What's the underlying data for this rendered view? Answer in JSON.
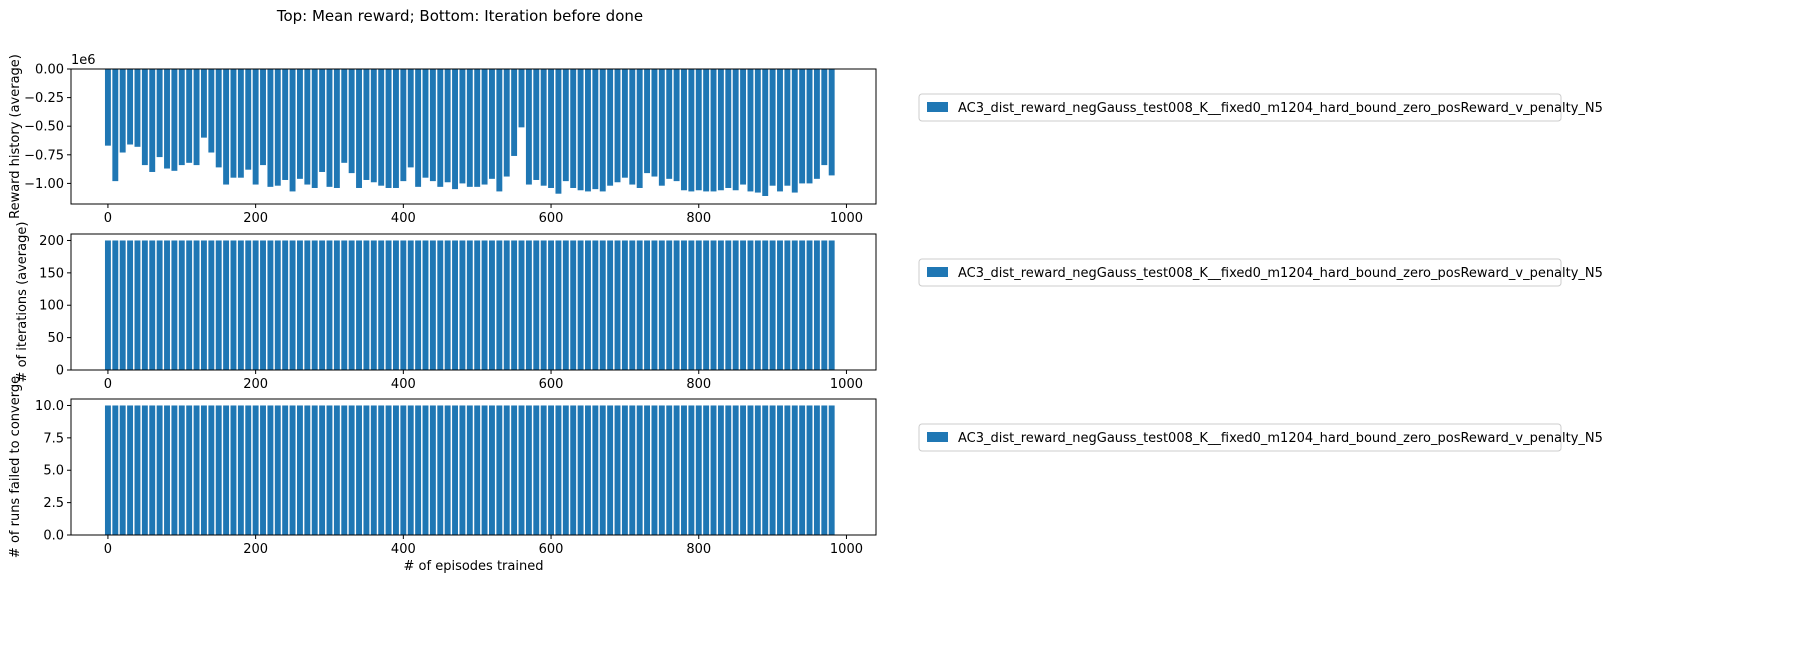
{
  "figure": {
    "suptitle": "Top: Mean reward; Bottom: Iteration before done",
    "bar_color": "#1f77b4"
  },
  "chart_data": [
    {
      "type": "bar",
      "title": "",
      "xlabel": "",
      "ylabel": "Reward history (average)",
      "offset_label": "1e6",
      "xlim": [
        -50,
        1040
      ],
      "ylim": [
        -1.18,
        0.0
      ],
      "xticks": [
        0,
        200,
        400,
        600,
        800,
        1000
      ],
      "xtick_labels": [
        "0",
        "200",
        "400",
        "600",
        "800",
        "1000"
      ],
      "yticks": [
        0.0,
        -0.25,
        -0.5,
        -0.75,
        -1.0
      ],
      "ytick_labels": [
        "0.00",
        "−0.25",
        "−0.50",
        "−0.75",
        "−1.00"
      ],
      "y_scale_note": "values in units of 1e6",
      "series": [
        {
          "name": "AC3_dist_reward_negGauss_test008_K__fixed0_m1204_hard_bound_zero_posReward_v_penalty_N5",
          "x": [
            0,
            10,
            20,
            30,
            40,
            50,
            60,
            70,
            80,
            90,
            100,
            110,
            120,
            130,
            140,
            150,
            160,
            170,
            180,
            190,
            200,
            210,
            220,
            230,
            240,
            250,
            260,
            270,
            280,
            290,
            300,
            310,
            320,
            330,
            340,
            350,
            360,
            370,
            380,
            390,
            400,
            410,
            420,
            430,
            440,
            450,
            460,
            470,
            480,
            490,
            500,
            510,
            520,
            530,
            540,
            550,
            560,
            570,
            580,
            590,
            600,
            610,
            620,
            630,
            640,
            650,
            660,
            670,
            680,
            690,
            700,
            710,
            720,
            730,
            740,
            750,
            760,
            770,
            780,
            790,
            800,
            810,
            820,
            830,
            840,
            850,
            860,
            870,
            880,
            890,
            900,
            910,
            920,
            930,
            940,
            950,
            960,
            970,
            980
          ],
          "values": [
            -0.67,
            -0.98,
            -0.73,
            -0.66,
            -0.68,
            -0.84,
            -0.9,
            -0.77,
            -0.87,
            -0.89,
            -0.84,
            -0.82,
            -0.84,
            -0.6,
            -0.73,
            -0.86,
            -1.01,
            -0.95,
            -0.95,
            -0.88,
            -1.01,
            -0.84,
            -1.03,
            -1.02,
            -0.97,
            -1.07,
            -0.96,
            -1.01,
            -1.04,
            -0.9,
            -1.03,
            -1.04,
            -0.82,
            -0.91,
            -1.04,
            -0.97,
            -0.99,
            -1.02,
            -1.04,
            -1.04,
            -0.98,
            -0.86,
            -1.03,
            -0.95,
            -0.98,
            -1.03,
            -0.99,
            -1.05,
            -1.0,
            -1.03,
            -1.03,
            -1.01,
            -0.96,
            -1.07,
            -0.94,
            -0.76,
            -0.51,
            -1.01,
            -0.97,
            -1.02,
            -1.04,
            -1.09,
            -0.98,
            -1.04,
            -1.06,
            -1.07,
            -1.05,
            -1.07,
            -1.02,
            -0.99,
            -0.95,
            -1.01,
            -1.04,
            -0.91,
            -0.94,
            -1.02,
            -0.96,
            -0.98,
            -1.06,
            -1.07,
            -1.06,
            -1.07,
            -1.07,
            -1.06,
            -1.04,
            -1.06,
            -1.01,
            -1.07,
            -1.08,
            -1.11,
            -1.02,
            -1.07,
            -1.02,
            -1.08,
            -1.0,
            -1.0,
            -0.96,
            -0.84,
            -0.93
          ]
        }
      ],
      "legend": "upper-left outside right"
    },
    {
      "type": "bar",
      "title": "",
      "xlabel": "",
      "ylabel": "# of iterations (average)",
      "xlim": [
        -50,
        1040
      ],
      "ylim": [
        0,
        210
      ],
      "xticks": [
        0,
        200,
        400,
        600,
        800,
        1000
      ],
      "xtick_labels": [
        "0",
        "200",
        "400",
        "600",
        "800",
        "1000"
      ],
      "yticks": [
        0,
        50,
        100,
        150,
        200
      ],
      "ytick_labels": [
        "0",
        "50",
        "100",
        "150",
        "200"
      ],
      "series": [
        {
          "name": "AC3_dist_reward_negGauss_test008_K__fixed0_m1204_hard_bound_zero_posReward_v_penalty_N5",
          "x_start": 0,
          "x_step": 10,
          "count": 99,
          "constant_value": 200
        }
      ],
      "legend": "upper-left outside right"
    },
    {
      "type": "bar",
      "title": "",
      "xlabel": "# of episodes trained",
      "ylabel": "# of runs failed to converge",
      "xlim": [
        -50,
        1040
      ],
      "ylim": [
        0,
        10.5
      ],
      "xticks": [
        0,
        200,
        400,
        600,
        800,
        1000
      ],
      "xtick_labels": [
        "0",
        "200",
        "400",
        "600",
        "800",
        "1000"
      ],
      "yticks": [
        0,
        2.5,
        5.0,
        7.5,
        10.0
      ],
      "ytick_labels": [
        "0.0",
        "2.5",
        "5.0",
        "7.5",
        "10.0"
      ],
      "series": [
        {
          "name": "AC3_dist_reward_negGauss_test008_K__fixed0_m1204_hard_bound_zero_posReward_v_penalty_N5",
          "x_start": 0,
          "x_step": 10,
          "count": 99,
          "constant_value": 10
        }
      ],
      "legend": "upper-left outside right"
    }
  ]
}
